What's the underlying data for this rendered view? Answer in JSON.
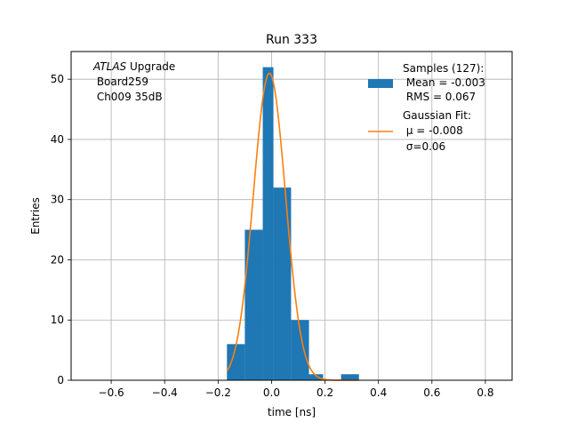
{
  "chart_data": {
    "type": "bar",
    "title": "Run 333",
    "xlabel": "time [ns]",
    "ylabel": "Entries",
    "xlim": [
      -0.75,
      0.9
    ],
    "ylim": [
      0,
      54.6
    ],
    "grid": true,
    "x_ticks": [
      -0.6,
      -0.4,
      -0.2,
      0.0,
      0.2,
      0.4,
      0.6,
      0.8
    ],
    "x_tick_labels": [
      "−0.6",
      "−0.4",
      "−0.2",
      "0.0",
      "0.2",
      "0.4",
      "0.6",
      "0.8"
    ],
    "y_ticks": [
      0,
      10,
      20,
      30,
      40,
      50
    ],
    "y_tick_labels": [
      "0",
      "10",
      "20",
      "30",
      "40",
      "50"
    ],
    "histogram": {
      "name": "Samples (127):",
      "color": "#1f77b4",
      "bin_edges": [
        -0.167,
        -0.1,
        -0.033,
        0.007,
        0.073,
        0.14,
        0.193,
        0.26,
        0.327
      ],
      "counts": [
        6,
        25,
        52,
        32,
        10,
        1,
        0,
        1
      ]
    },
    "fit": {
      "name": "Gaussian Fit:",
      "color": "#ff7f0e",
      "amplitude": 51,
      "mu": -0.008,
      "sigma": 0.06,
      "x_range": [
        -0.167,
        0.327
      ]
    },
    "legend": {
      "placement": "top-right",
      "entries": [
        {
          "lines": [
            "Samples (127):",
            " Mean = -0.003",
            " RMS = 0.067"
          ]
        },
        {
          "lines": [
            "Gaussian Fit:",
            " μ = -0.008",
            " σ=0.06"
          ]
        }
      ]
    },
    "annotation": {
      "placement": "top-left",
      "atlas": "ATLAS",
      "rest": " Upgrade",
      "lines": [
        " Board259",
        " Ch009 35dB"
      ]
    }
  }
}
